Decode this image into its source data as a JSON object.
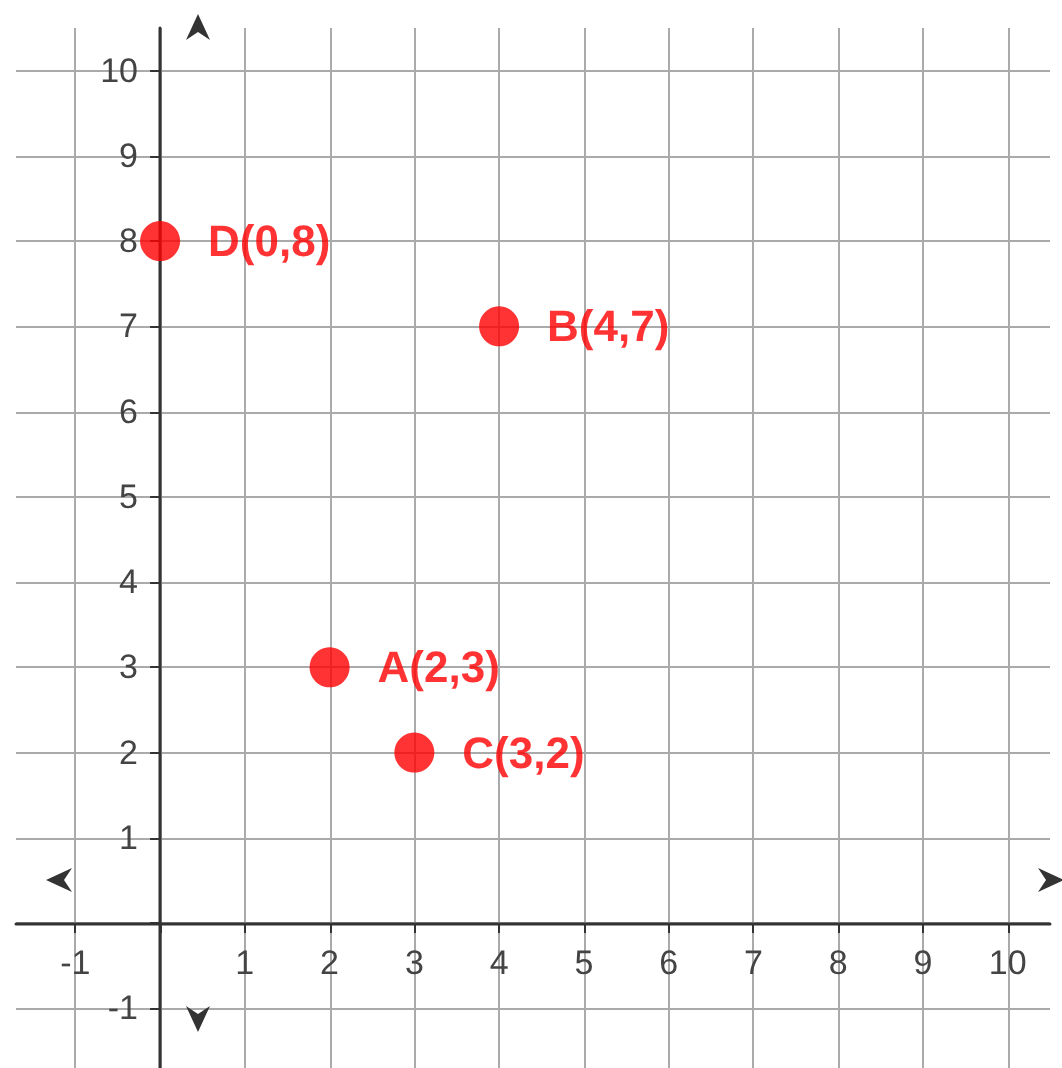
{
  "chart_data": {
    "type": "scatter",
    "x": [
      2,
      3,
      4,
      0
    ],
    "values": [
      3,
      2,
      7,
      8
    ],
    "color": "#ff0000",
    "marker": "circle",
    "grid": true,
    "xlim": [
      -1.7,
      10.5
    ],
    "ylim": [
      -1.7,
      10.5
    ],
    "xticks": [
      -1,
      {
        "value": 0,
        "label": null
      },
      1,
      2,
      3,
      4,
      5,
      6,
      7,
      8,
      9,
      10
    ],
    "yticks": [
      -1,
      {
        "value": 0,
        "label": null
      },
      1,
      2,
      3,
      4,
      5,
      6,
      7,
      8,
      9,
      10
    ],
    "annotations": [
      {
        "text": "A(2,3)",
        "x": 2,
        "y": 3
      },
      {
        "text": "C(3,2)",
        "x": 3,
        "y": 2
      },
      {
        "text": "B(4,7)",
        "x": 4,
        "y": 7
      },
      {
        "text": "D(0,8)",
        "x": 0,
        "y": 8
      }
    ]
  }
}
